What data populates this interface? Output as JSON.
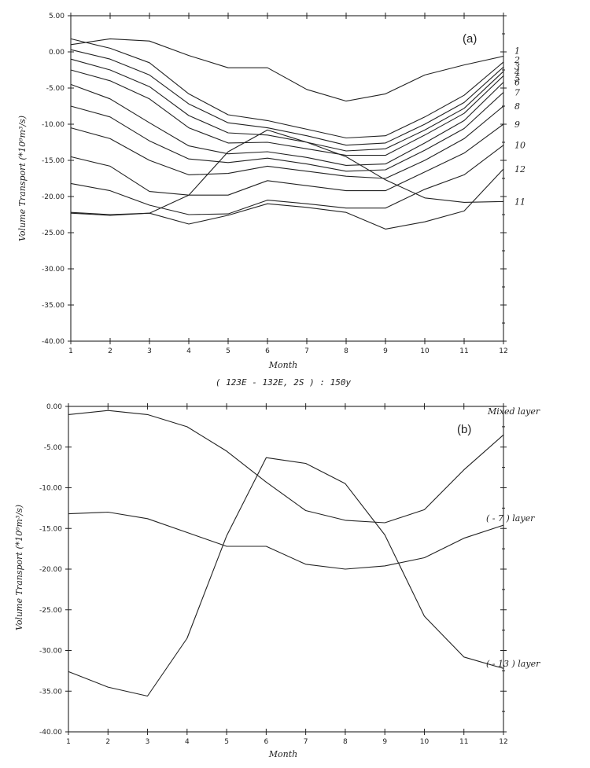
{
  "chart_data": [
    {
      "type": "line",
      "panel_tag": "(a)",
      "xlabel": "Month",
      "ylabel": "Volume Transport (*10⁶m³/s)",
      "caption": "( 123E - 132E, 2S ) : 150y",
      "x": [
        1,
        2,
        3,
        4,
        5,
        6,
        7,
        8,
        9,
        10,
        11,
        12
      ],
      "ylim": [
        -40,
        5
      ],
      "yticks": [
        5,
        0,
        -5,
        -10,
        -15,
        -20,
        -25,
        -30,
        -35,
        -40
      ],
      "ytick_labels": [
        "5.00",
        "0.00",
        "-5.00",
        "-10.00",
        "-15.00",
        "-20.00",
        "-25.00",
        "-30.00",
        "-35.00",
        "-40.00"
      ],
      "xtick_labels": [
        "1",
        "2",
        "3",
        "4",
        "5",
        "6",
        "7",
        "8",
        "9",
        "10",
        "11",
        "12"
      ],
      "series": [
        {
          "name": "1",
          "values": [
            1.0,
            1.8,
            1.5,
            -0.5,
            -2.2,
            -2.2,
            -5.2,
            -6.8,
            -5.8,
            -3.2,
            -1.8,
            -0.6
          ]
        },
        {
          "name": "2",
          "values": [
            1.8,
            0.5,
            -1.5,
            -5.8,
            -8.7,
            -9.5,
            -10.7,
            -11.9,
            -11.6,
            -9.0,
            -6.0,
            -1.4
          ]
        },
        {
          "name": "3",
          "values": [
            0.3,
            -1.0,
            -3.2,
            -7.2,
            -9.8,
            -10.5,
            -11.6,
            -12.9,
            -12.6,
            -10.0,
            -7.0,
            -2.1
          ]
        },
        {
          "name": "4",
          "values": [
            -1.0,
            -2.5,
            -4.8,
            -8.8,
            -11.2,
            -11.5,
            -12.5,
            -13.7,
            -13.4,
            -10.8,
            -7.8,
            -2.7
          ]
        },
        {
          "name": "5",
          "values": [
            -2.5,
            -4.0,
            -6.5,
            -10.5,
            -12.6,
            -12.5,
            -13.4,
            -14.3,
            -14.3,
            -11.5,
            -8.5,
            -3.3
          ]
        },
        {
          "name": "6",
          "values": [
            -4.5,
            -6.5,
            -9.8,
            -13.0,
            -14.1,
            -13.8,
            -14.6,
            -15.7,
            -15.5,
            -12.6,
            -9.5,
            -4.2
          ]
        },
        {
          "name": "7",
          "values": [
            -7.5,
            -9.0,
            -12.3,
            -14.8,
            -15.3,
            -14.7,
            -15.5,
            -16.5,
            -16.3,
            -13.6,
            -10.6,
            -5.6
          ]
        },
        {
          "name": "8",
          "values": [
            -10.5,
            -12.0,
            -15.0,
            -17.0,
            -16.8,
            -15.8,
            -16.5,
            -17.2,
            -17.5,
            -15.0,
            -12.0,
            -7.5
          ]
        },
        {
          "name": "9",
          "values": [
            -14.5,
            -15.8,
            -19.3,
            -19.8,
            -19.8,
            -17.8,
            -18.5,
            -19.2,
            -19.2,
            -16.6,
            -14.0,
            -10.0
          ]
        },
        {
          "name": "10",
          "values": [
            -18.2,
            -19.2,
            -21.2,
            -22.5,
            -22.4,
            -20.5,
            -21.0,
            -21.6,
            -21.6,
            -19.0,
            -17.0,
            -12.9
          ]
        },
        {
          "name": "11",
          "values": [
            -22.2,
            -22.5,
            -22.3,
            -19.8,
            -13.8,
            -10.8,
            -12.5,
            -14.5,
            -17.7,
            -20.2,
            -20.8,
            -20.7
          ]
        },
        {
          "name": "12",
          "values": [
            -22.3,
            -22.6,
            -22.3,
            -23.8,
            -22.6,
            -21.0,
            -21.5,
            -22.2,
            -24.5,
            -23.5,
            -22.0,
            -16.2
          ]
        }
      ]
    },
    {
      "type": "line",
      "panel_tag": "(b)",
      "xlabel": "Month",
      "ylabel": "Volume Transport (*10⁶m³/s)",
      "x": [
        1,
        2,
        3,
        4,
        5,
        6,
        7,
        8,
        9,
        10,
        11,
        12
      ],
      "ylim": [
        -40,
        0
      ],
      "yticks": [
        0,
        -5,
        -10,
        -15,
        -20,
        -25,
        -30,
        -35,
        -40
      ],
      "ytick_labels": [
        "0.00",
        "-5.00",
        "-10.00",
        "-15.00",
        "-20.00",
        "-25.00",
        "-30.00",
        "-35.00",
        "-40.00"
      ],
      "xtick_labels": [
        "1",
        "2",
        "3",
        "4",
        "5",
        "6",
        "7",
        "8",
        "9",
        "10",
        "11",
        "12"
      ],
      "series": [
        {
          "name": "Mixed layer",
          "values": [
            -1.0,
            -0.5,
            -1.0,
            -2.5,
            -5.5,
            -9.3,
            -12.8,
            -14.0,
            -14.3,
            -12.7,
            -7.8,
            -3.5
          ]
        },
        {
          "name": "( - 7 ) layer",
          "values": [
            -13.2,
            -13.0,
            -13.8,
            -15.5,
            -17.2,
            -17.2,
            -19.4,
            -20.0,
            -19.6,
            -18.6,
            -16.2,
            -14.6
          ]
        },
        {
          "name": "( - 13 ) layer",
          "values": [
            -32.6,
            -34.5,
            -35.6,
            -28.5,
            -15.9,
            -6.3,
            -7.0,
            -9.5,
            -15.8,
            -25.8,
            -30.8,
            -32.2
          ]
        }
      ]
    }
  ]
}
